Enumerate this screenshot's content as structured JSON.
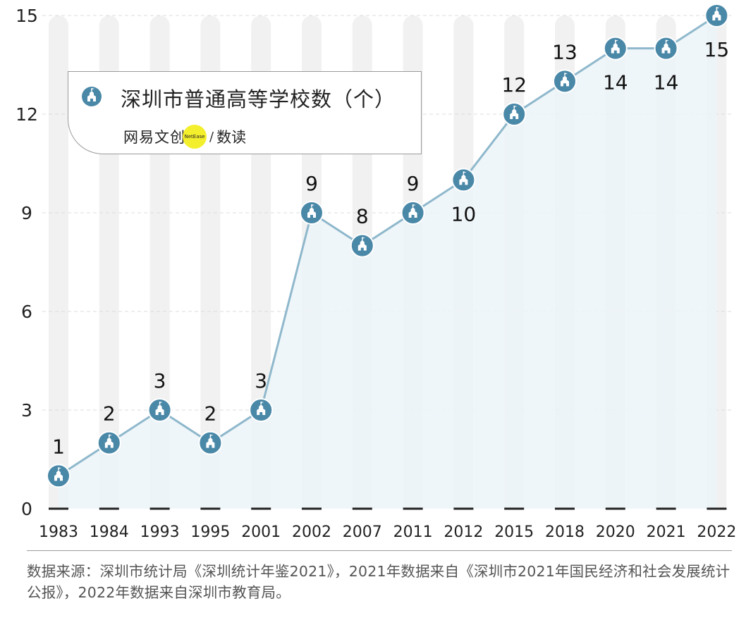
{
  "legend": {
    "title": "深圳市普通高等学校数（个）",
    "icon": "school-building-icon",
    "brand_name": "网易文创",
    "brand_badge": "NetEase",
    "brand_sep": "/",
    "brand_sub": "数读"
  },
  "source_note": "数据来源：深圳市统计局《深圳统计年鉴2021》，2021年数据来自《深圳市2021年国民经济和社会发展统计公报》，2022年数据来自深圳市教育局。",
  "colors": {
    "line": "#8fb8cc",
    "marker": "#4a88a8",
    "area": "#ecf4f8",
    "band": "#f1f1f1"
  },
  "chart_data": {
    "type": "line",
    "categories": [
      "1983",
      "1984",
      "1993",
      "1995",
      "2001",
      "2002",
      "2007",
      "2011",
      "2012",
      "2015",
      "2018",
      "2020",
      "2021",
      "2022"
    ],
    "values": [
      1,
      2,
      3,
      2,
      3,
      9,
      8,
      9,
      10,
      12,
      13,
      14,
      14,
      15
    ],
    "label_position": [
      "above",
      "above",
      "above",
      "above",
      "above",
      "above",
      "above",
      "above",
      "below",
      "above",
      "above",
      "below",
      "below",
      "below"
    ],
    "yticks": [
      0,
      3,
      6,
      9,
      12,
      15
    ],
    "ylim": [
      0,
      15
    ],
    "grid": true,
    "title": "深圳市普通高等学校数（个）"
  }
}
